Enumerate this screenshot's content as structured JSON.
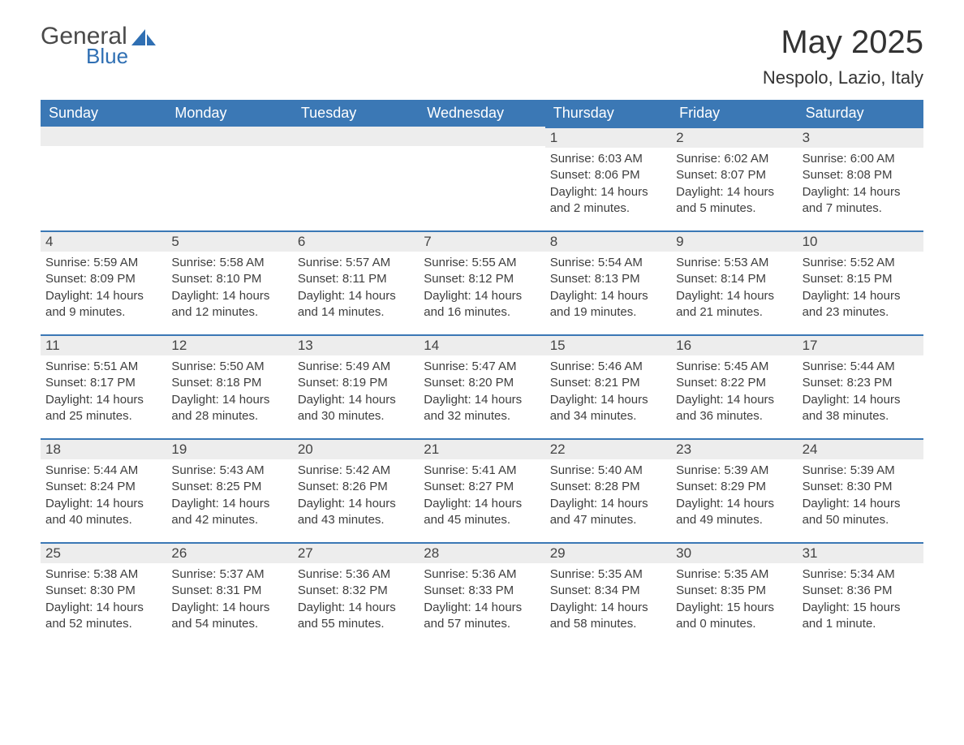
{
  "logo": {
    "word1": "General",
    "word2": "Blue",
    "icon_color": "#2f6fb3"
  },
  "title": "May 2025",
  "location": "Nespolo, Lazio, Italy",
  "colors": {
    "header_bg": "#3b78b5",
    "header_text": "#ffffff",
    "day_bar_bg": "#ededed",
    "day_bar_border": "#3b78b5",
    "body_text": "#3e3e3e",
    "page_bg": "#ffffff"
  },
  "weekdays": [
    "Sunday",
    "Monday",
    "Tuesday",
    "Wednesday",
    "Thursday",
    "Friday",
    "Saturday"
  ],
  "weeks": [
    [
      null,
      null,
      null,
      null,
      {
        "n": "1",
        "sunrise": "Sunrise: 6:03 AM",
        "sunset": "Sunset: 8:06 PM",
        "daylight": "Daylight: 14 hours and 2 minutes."
      },
      {
        "n": "2",
        "sunrise": "Sunrise: 6:02 AM",
        "sunset": "Sunset: 8:07 PM",
        "daylight": "Daylight: 14 hours and 5 minutes."
      },
      {
        "n": "3",
        "sunrise": "Sunrise: 6:00 AM",
        "sunset": "Sunset: 8:08 PM",
        "daylight": "Daylight: 14 hours and 7 minutes."
      }
    ],
    [
      {
        "n": "4",
        "sunrise": "Sunrise: 5:59 AM",
        "sunset": "Sunset: 8:09 PM",
        "daylight": "Daylight: 14 hours and 9 minutes."
      },
      {
        "n": "5",
        "sunrise": "Sunrise: 5:58 AM",
        "sunset": "Sunset: 8:10 PM",
        "daylight": "Daylight: 14 hours and 12 minutes."
      },
      {
        "n": "6",
        "sunrise": "Sunrise: 5:57 AM",
        "sunset": "Sunset: 8:11 PM",
        "daylight": "Daylight: 14 hours and 14 minutes."
      },
      {
        "n": "7",
        "sunrise": "Sunrise: 5:55 AM",
        "sunset": "Sunset: 8:12 PM",
        "daylight": "Daylight: 14 hours and 16 minutes."
      },
      {
        "n": "8",
        "sunrise": "Sunrise: 5:54 AM",
        "sunset": "Sunset: 8:13 PM",
        "daylight": "Daylight: 14 hours and 19 minutes."
      },
      {
        "n": "9",
        "sunrise": "Sunrise: 5:53 AM",
        "sunset": "Sunset: 8:14 PM",
        "daylight": "Daylight: 14 hours and 21 minutes."
      },
      {
        "n": "10",
        "sunrise": "Sunrise: 5:52 AM",
        "sunset": "Sunset: 8:15 PM",
        "daylight": "Daylight: 14 hours and 23 minutes."
      }
    ],
    [
      {
        "n": "11",
        "sunrise": "Sunrise: 5:51 AM",
        "sunset": "Sunset: 8:17 PM",
        "daylight": "Daylight: 14 hours and 25 minutes."
      },
      {
        "n": "12",
        "sunrise": "Sunrise: 5:50 AM",
        "sunset": "Sunset: 8:18 PM",
        "daylight": "Daylight: 14 hours and 28 minutes."
      },
      {
        "n": "13",
        "sunrise": "Sunrise: 5:49 AM",
        "sunset": "Sunset: 8:19 PM",
        "daylight": "Daylight: 14 hours and 30 minutes."
      },
      {
        "n": "14",
        "sunrise": "Sunrise: 5:47 AM",
        "sunset": "Sunset: 8:20 PM",
        "daylight": "Daylight: 14 hours and 32 minutes."
      },
      {
        "n": "15",
        "sunrise": "Sunrise: 5:46 AM",
        "sunset": "Sunset: 8:21 PM",
        "daylight": "Daylight: 14 hours and 34 minutes."
      },
      {
        "n": "16",
        "sunrise": "Sunrise: 5:45 AM",
        "sunset": "Sunset: 8:22 PM",
        "daylight": "Daylight: 14 hours and 36 minutes."
      },
      {
        "n": "17",
        "sunrise": "Sunrise: 5:44 AM",
        "sunset": "Sunset: 8:23 PM",
        "daylight": "Daylight: 14 hours and 38 minutes."
      }
    ],
    [
      {
        "n": "18",
        "sunrise": "Sunrise: 5:44 AM",
        "sunset": "Sunset: 8:24 PM",
        "daylight": "Daylight: 14 hours and 40 minutes."
      },
      {
        "n": "19",
        "sunrise": "Sunrise: 5:43 AM",
        "sunset": "Sunset: 8:25 PM",
        "daylight": "Daylight: 14 hours and 42 minutes."
      },
      {
        "n": "20",
        "sunrise": "Sunrise: 5:42 AM",
        "sunset": "Sunset: 8:26 PM",
        "daylight": "Daylight: 14 hours and 43 minutes."
      },
      {
        "n": "21",
        "sunrise": "Sunrise: 5:41 AM",
        "sunset": "Sunset: 8:27 PM",
        "daylight": "Daylight: 14 hours and 45 minutes."
      },
      {
        "n": "22",
        "sunrise": "Sunrise: 5:40 AM",
        "sunset": "Sunset: 8:28 PM",
        "daylight": "Daylight: 14 hours and 47 minutes."
      },
      {
        "n": "23",
        "sunrise": "Sunrise: 5:39 AM",
        "sunset": "Sunset: 8:29 PM",
        "daylight": "Daylight: 14 hours and 49 minutes."
      },
      {
        "n": "24",
        "sunrise": "Sunrise: 5:39 AM",
        "sunset": "Sunset: 8:30 PM",
        "daylight": "Daylight: 14 hours and 50 minutes."
      }
    ],
    [
      {
        "n": "25",
        "sunrise": "Sunrise: 5:38 AM",
        "sunset": "Sunset: 8:30 PM",
        "daylight": "Daylight: 14 hours and 52 minutes."
      },
      {
        "n": "26",
        "sunrise": "Sunrise: 5:37 AM",
        "sunset": "Sunset: 8:31 PM",
        "daylight": "Daylight: 14 hours and 54 minutes."
      },
      {
        "n": "27",
        "sunrise": "Sunrise: 5:36 AM",
        "sunset": "Sunset: 8:32 PM",
        "daylight": "Daylight: 14 hours and 55 minutes."
      },
      {
        "n": "28",
        "sunrise": "Sunrise: 5:36 AM",
        "sunset": "Sunset: 8:33 PM",
        "daylight": "Daylight: 14 hours and 57 minutes."
      },
      {
        "n": "29",
        "sunrise": "Sunrise: 5:35 AM",
        "sunset": "Sunset: 8:34 PM",
        "daylight": "Daylight: 14 hours and 58 minutes."
      },
      {
        "n": "30",
        "sunrise": "Sunrise: 5:35 AM",
        "sunset": "Sunset: 8:35 PM",
        "daylight": "Daylight: 15 hours and 0 minutes."
      },
      {
        "n": "31",
        "sunrise": "Sunrise: 5:34 AM",
        "sunset": "Sunset: 8:36 PM",
        "daylight": "Daylight: 15 hours and 1 minute."
      }
    ]
  ]
}
